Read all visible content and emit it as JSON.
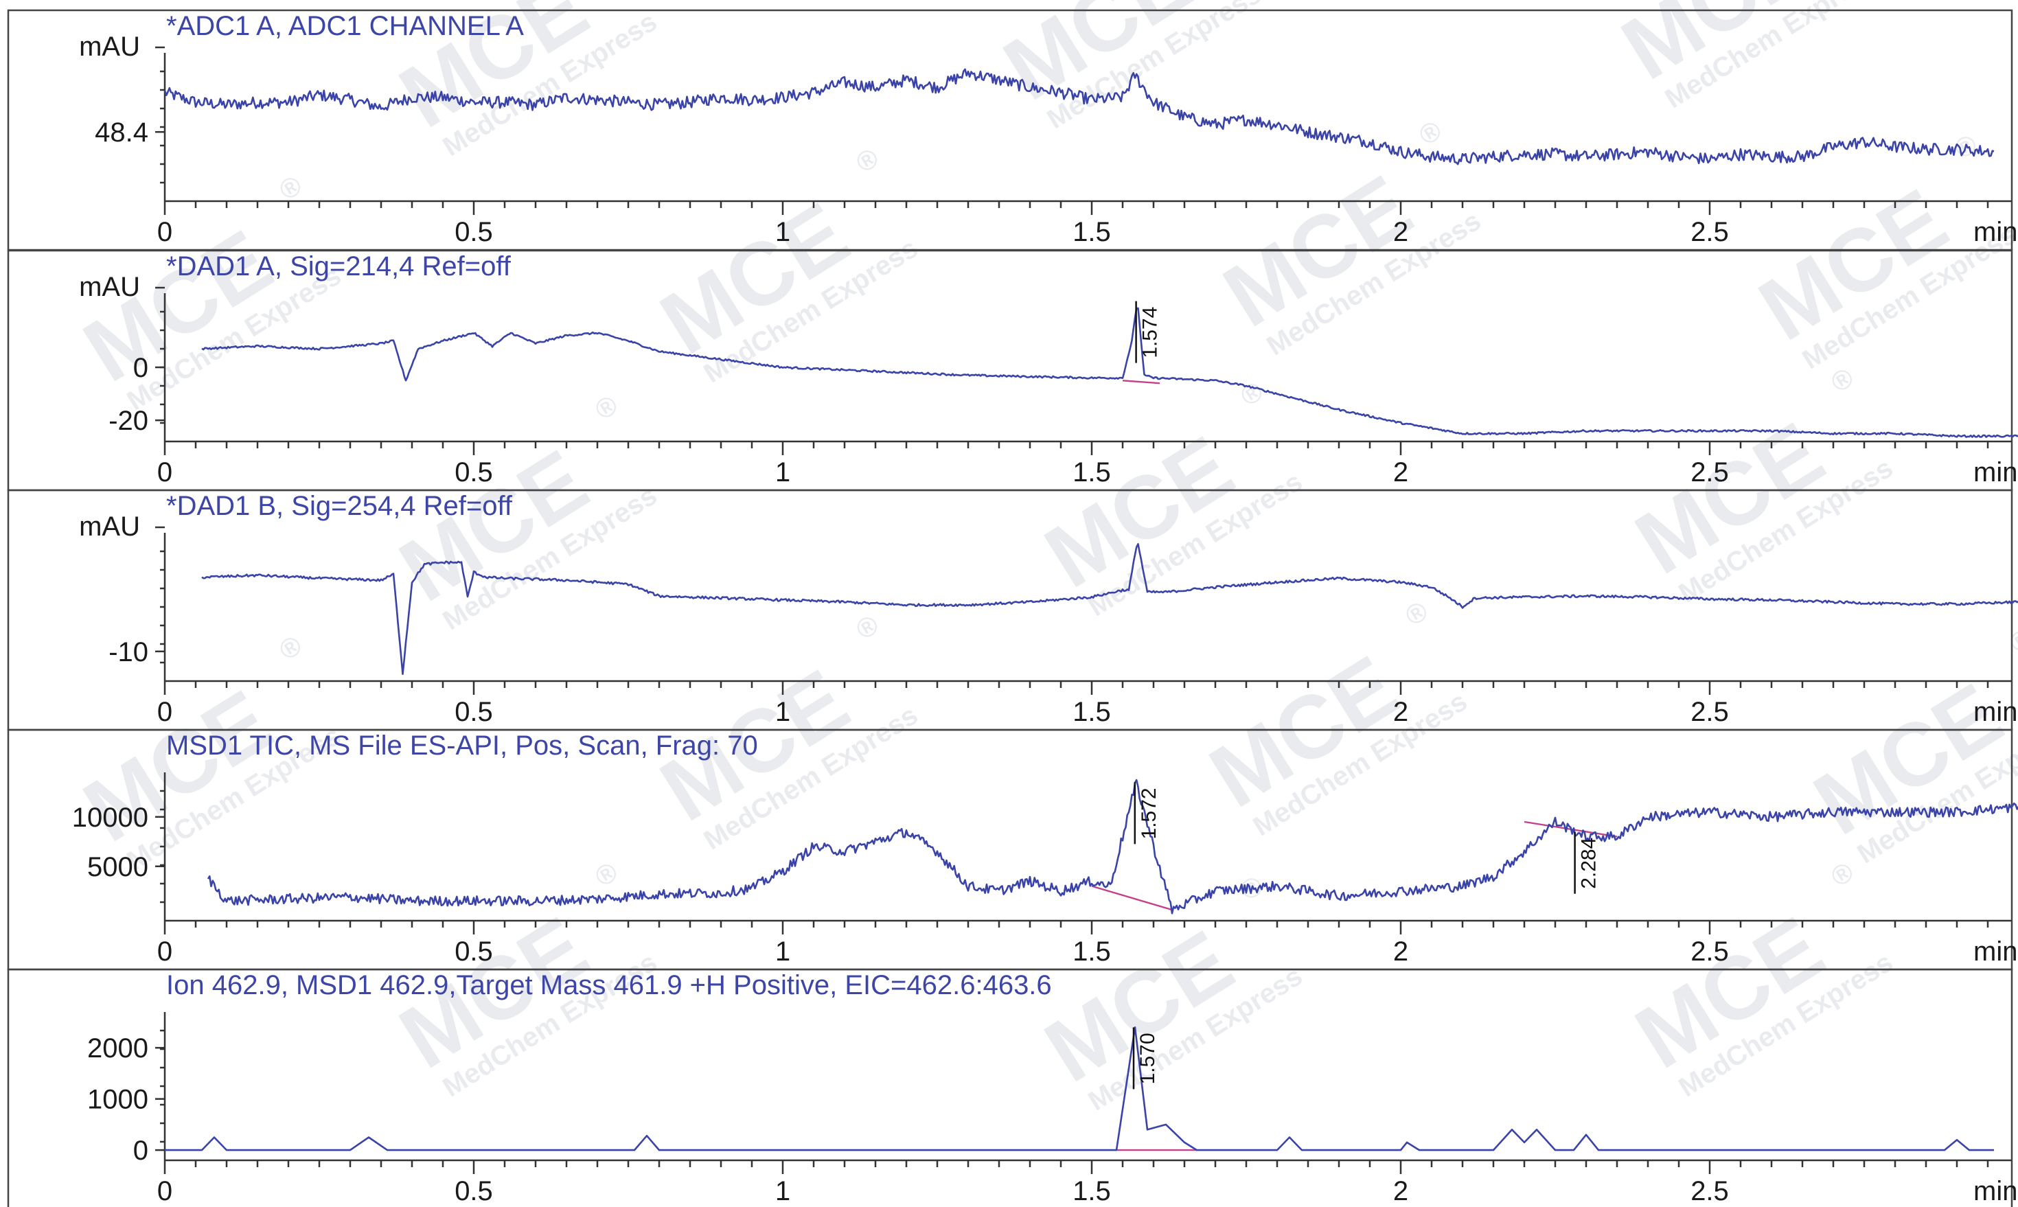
{
  "watermark": {
    "logo": "MCE",
    "text": "MedChem Express",
    "registered": "®"
  },
  "chart_data": [
    {
      "type": "line",
      "title": "*ADC1 A, ADC1 CHANNEL A",
      "xlabel": "min",
      "ylabel": "mAU",
      "xlim": [
        0,
        3.0
      ],
      "ylim": [
        47.0,
        50.0
      ],
      "xticks": [
        0,
        0.5,
        1,
        1.5,
        2,
        2.5
      ],
      "xtick_labels": [
        "0",
        "0.5",
        "1",
        "1.5",
        "2",
        "2.5"
      ],
      "yticks": [
        48.4
      ],
      "ytick_labels": [
        "48.4"
      ],
      "noise": 0.12,
      "series": [
        {
          "x": [
            0,
            0.05,
            0.1,
            0.15,
            0.2,
            0.25,
            0.3,
            0.35,
            0.4,
            0.45,
            0.5,
            0.55,
            0.6,
            0.65,
            0.7,
            0.75,
            0.8,
            0.85,
            0.9,
            0.95,
            1.0,
            1.05,
            1.1,
            1.15,
            1.2,
            1.25,
            1.3,
            1.35,
            1.4,
            1.45,
            1.5,
            1.55,
            1.57,
            1.6,
            1.65,
            1.7,
            1.75,
            1.8,
            1.85,
            1.9,
            1.95,
            2.0,
            2.05,
            2.1,
            2.15,
            2.2,
            2.25,
            2.3,
            2.35,
            2.4,
            2.45,
            2.5,
            2.55,
            2.6,
            2.65,
            2.7,
            2.75,
            2.8,
            2.85,
            2.9,
            2.96
          ],
          "y": [
            49.2,
            49.0,
            48.95,
            49.0,
            49.0,
            49.15,
            49.05,
            48.9,
            49.1,
            49.1,
            49.0,
            49.0,
            48.95,
            49.1,
            49.05,
            49.0,
            48.95,
            49.0,
            49.1,
            49.05,
            49.1,
            49.2,
            49.4,
            49.3,
            49.45,
            49.3,
            49.6,
            49.45,
            49.3,
            49.2,
            49.05,
            49.1,
            49.55,
            49.0,
            48.7,
            48.55,
            48.65,
            48.55,
            48.4,
            48.3,
            48.2,
            48.0,
            47.9,
            47.85,
            47.9,
            47.95,
            47.95,
            47.9,
            47.95,
            48.0,
            47.9,
            47.85,
            47.95,
            47.9,
            47.9,
            48.1,
            48.2,
            48.1,
            48.05,
            48.05,
            48.0
          ]
        }
      ]
    },
    {
      "type": "line",
      "title": "*DAD1 A, Sig=214,4 Ref=off",
      "xlabel": "min",
      "ylabel": "mAU",
      "xlim": [
        0,
        3.0
      ],
      "ylim": [
        -28,
        28
      ],
      "xticks": [
        0,
        0.5,
        1,
        1.5,
        2,
        2.5
      ],
      "xtick_labels": [
        "0",
        "0.5",
        "1",
        "1.5",
        "2",
        "2.5"
      ],
      "yticks": [
        0,
        -20
      ],
      "ytick_labels": [
        "0",
        "-20"
      ],
      "noise": 0.35,
      "peak_labels": [
        {
          "x": 1.574,
          "label": "1.574"
        }
      ],
      "baselines": [
        {
          "x": [
            1.55,
            1.61
          ],
          "y": [
            -5,
            -6
          ]
        }
      ],
      "series": [
        {
          "x": [
            0.06,
            0.15,
            0.25,
            0.35,
            0.37,
            0.39,
            0.41,
            0.45,
            0.5,
            0.53,
            0.56,
            0.6,
            0.65,
            0.7,
            0.75,
            0.8,
            0.9,
            1.0,
            1.1,
            1.2,
            1.3,
            1.4,
            1.5,
            1.55,
            1.565,
            1.574,
            1.585,
            1.6,
            1.65,
            1.7,
            1.75,
            1.8,
            1.9,
            2.0,
            2.05,
            2.1,
            2.15,
            2.2,
            2.3,
            2.4,
            2.5,
            2.6,
            2.7,
            2.8,
            2.9,
            3.0
          ],
          "y": [
            7,
            8,
            7,
            9,
            10,
            -5,
            7,
            10,
            13,
            8,
            13,
            9,
            12,
            13,
            10,
            6,
            3,
            0,
            -1,
            -2,
            -3,
            -3.5,
            -4,
            -4,
            10,
            25,
            -3,
            -4,
            -4.5,
            -5,
            -7,
            -10,
            -16,
            -21,
            -23,
            -25,
            -25,
            -25,
            -24,
            -24,
            -24,
            -24,
            -25,
            -25,
            -26,
            -26
          ]
        }
      ]
    },
    {
      "type": "line",
      "title": "*DAD1 B, Sig=254,4 Ref=off",
      "xlabel": "min",
      "ylabel": "mAU",
      "xlim": [
        0,
        3.0
      ],
      "ylim": [
        -13,
        2
      ],
      "xticks": [
        0,
        0.5,
        1,
        1.5,
        2,
        2.5
      ],
      "xtick_labels": [
        "0",
        "0.5",
        "1",
        "1.5",
        "2",
        "2.5"
      ],
      "yticks": [
        -10
      ],
      "ytick_labels": [
        "-10"
      ],
      "noise": 0.12,
      "series": [
        {
          "x": [
            0.06,
            0.15,
            0.25,
            0.35,
            0.37,
            0.385,
            0.4,
            0.42,
            0.45,
            0.48,
            0.49,
            0.5,
            0.52,
            0.55,
            0.65,
            0.75,
            0.8,
            0.9,
            1.0,
            1.1,
            1.2,
            1.3,
            1.4,
            1.5,
            1.55,
            1.56,
            1.574,
            1.59,
            1.62,
            1.7,
            1.8,
            1.9,
            2.0,
            2.05,
            2.08,
            2.1,
            2.12,
            2.2,
            2.3,
            2.4,
            2.5,
            2.6,
            2.7,
            2.8,
            2.9,
            3.0
          ],
          "y": [
            -2.5,
            -2.3,
            -2.6,
            -2.8,
            -2.2,
            -12.2,
            -3.0,
            -1.2,
            -1.0,
            -1.0,
            -4.5,
            -2.0,
            -2.5,
            -2.6,
            -2.8,
            -3.2,
            -4.4,
            -4.6,
            -4.8,
            -5.0,
            -5.3,
            -5.3,
            -5.0,
            -4.5,
            -3.8,
            -3.8,
            1.2,
            -4.0,
            -4.0,
            -3.5,
            -3.0,
            -2.6,
            -3.0,
            -3.5,
            -4.6,
            -5.5,
            -4.6,
            -4.5,
            -4.4,
            -4.5,
            -4.7,
            -4.8,
            -5.0,
            -5.2,
            -5.2,
            -5.0
          ]
        }
      ]
    },
    {
      "type": "line",
      "title": "MSD1 TIC, MS File     ES-API, Pos, Scan, Frag: 70",
      "xlabel": "min",
      "ylabel": "",
      "xlim": [
        0,
        3.0
      ],
      "ylim": [
        -500,
        14500
      ],
      "xticks": [
        0,
        0.5,
        1,
        1.5,
        2,
        2.5
      ],
      "xtick_labels": [
        "0",
        "0.5",
        "1",
        "1.5",
        "2",
        "2.5"
      ],
      "yticks": [
        10000,
        5000
      ],
      "ytick_labels": [
        "10000",
        "5000"
      ],
      "noise": 500,
      "peak_labels": [
        {
          "x": 1.572,
          "label": "1.572"
        },
        {
          "x": 2.284,
          "label": "2.284"
        }
      ],
      "baselines": [
        {
          "x": [
            1.5,
            1.63
          ],
          "y": [
            3000,
            600
          ]
        },
        {
          "x": [
            2.2,
            2.35
          ],
          "y": [
            9500,
            8000
          ]
        }
      ],
      "series": [
        {
          "x": [
            0.07,
            0.1,
            0.2,
            0.3,
            0.4,
            0.5,
            0.6,
            0.7,
            0.8,
            0.9,
            0.95,
            1.0,
            1.05,
            1.1,
            1.15,
            1.2,
            1.25,
            1.3,
            1.35,
            1.4,
            1.45,
            1.5,
            1.53,
            1.572,
            1.6,
            1.63,
            1.7,
            1.8,
            1.9,
            2.0,
            2.1,
            2.15,
            2.2,
            2.25,
            2.3,
            2.35,
            2.4,
            2.5,
            2.6,
            2.7,
            2.8,
            2.9,
            3.0
          ],
          "y": [
            3800,
            1500,
            1700,
            1900,
            1500,
            1500,
            1500,
            1700,
            2200,
            2300,
            2800,
            4500,
            7000,
            6500,
            7500,
            8500,
            6500,
            3000,
            2500,
            3500,
            2500,
            3500,
            3000,
            13500,
            7000,
            600,
            2500,
            3000,
            2000,
            2500,
            3000,
            4000,
            6500,
            9500,
            8000,
            8000,
            10000,
            10500,
            10000,
            10500,
            10500,
            10500,
            11000
          ]
        }
      ]
    },
    {
      "type": "line",
      "title": "Ion 462.9, MSD1 462.9,Target Mass 461.9 +H Positive, EIC=462.6:463.6",
      "xlabel": "min",
      "ylabel": "",
      "xlim": [
        0,
        3.0
      ],
      "ylim": [
        -200,
        2700
      ],
      "xticks": [
        0,
        0.5,
        1,
        1.5,
        2,
        2.5
      ],
      "xtick_labels": [
        "0",
        "0.5",
        "1",
        "1.5",
        "2",
        "2.5"
      ],
      "yticks": [
        2000,
        1000,
        0
      ],
      "ytick_labels": [
        "2000",
        "1000",
        "0"
      ],
      "noise": 0,
      "peak_labels": [
        {
          "x": 1.57,
          "label": "1.570"
        }
      ],
      "baselines": [
        {
          "x": [
            1.54,
            1.67
          ],
          "y": [
            0,
            0
          ]
        }
      ],
      "series": [
        {
          "x": [
            0.0,
            0.06,
            0.08,
            0.1,
            0.3,
            0.33,
            0.36,
            0.76,
            0.78,
            0.8,
            1.54,
            1.57,
            1.59,
            1.62,
            1.65,
            1.67,
            1.8,
            1.82,
            1.84,
            2.0,
            2.01,
            2.03,
            2.15,
            2.18,
            2.2,
            2.22,
            2.25,
            2.28,
            2.3,
            2.32,
            2.88,
            2.9,
            2.92,
            2.96
          ],
          "y": [
            0,
            0,
            250,
            0,
            0,
            250,
            0,
            0,
            280,
            0,
            0,
            2400,
            400,
            500,
            150,
            0,
            0,
            250,
            0,
            0,
            150,
            0,
            0,
            400,
            150,
            400,
            0,
            0,
            300,
            0,
            0,
            200,
            0,
            0
          ]
        }
      ]
    }
  ]
}
